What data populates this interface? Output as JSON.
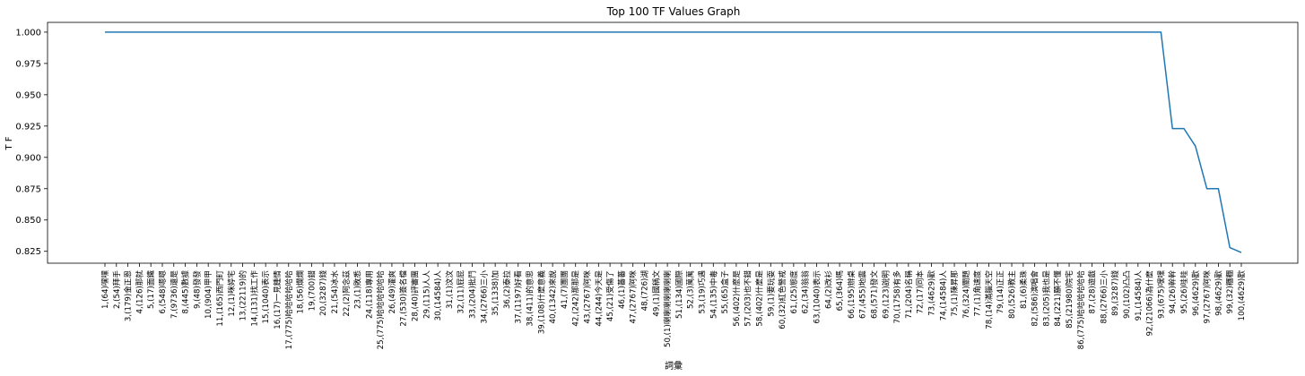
{
  "chart_data": {
    "type": "line",
    "title": "Top 100 TF Values Graph",
    "xlabel": "詞彙",
    "ylabel": "T F",
    "ylim": [
      0.8155,
      1.0078
    ],
    "yticks": [
      0.825,
      0.85,
      0.875,
      0.9,
      0.925,
      0.95,
      0.975,
      1.0
    ],
    "ytick_labels": [
      "0.825",
      "0.850",
      "0.875",
      "0.900",
      "0.925",
      "0.950",
      "0.975",
      "1.000"
    ],
    "grid": false,
    "line_color": "#1f77b4",
    "categories": [
      "1,(64)嘿嘿",
      "2,(54)拜手",
      "3,(179)金正恩",
      "4,(126)那就",
      "5,(17)面鐵",
      "6,(548)嗯嗯",
      "7,(9736)還是",
      "8,(445)數據",
      "9,(48)發發",
      "10,(904)甲甲",
      "11,(165)西門町",
      "12,(1)咪婷宅",
      "13,(22119)的",
      "14,(131)找工作",
      "15,(1040)表示",
      "16,(17)一見鍾情",
      "17,(775)哈哈哈哈哈哈",
      "18,(56)爛爛",
      "19,(700)錯",
      "20,(3287)錢",
      "21,(54)冰水",
      "22,(2)阿念茲",
      "23,(1)敗悉",
      "24,(118)專用",
      "25,(775)哈哈哈哈哈哈",
      "26,(49)灌爽",
      "27,(530)簽名檔",
      "28,(40)評審團",
      "29,(115)人人",
      "30,(14584)人",
      "31,(1)汶汶",
      "32,(11)屁屁",
      "33,(204)批鬥",
      "34,(2766)三小",
      "35,(1338)加",
      "36,(2)泰拉",
      "37,(1197)好看",
      "38,(411)的意思",
      "39,(108)什麼意義",
      "40,(1342)來說",
      "41,(7)團團",
      "42,(242)那那是",
      "43,(2767)阿咪",
      "44,(244)今天是",
      "45,(21)受傷了",
      "46,(1)蕃蕃",
      "47,(2767)阿咪",
      "48,(726)湖",
      "49,(1)國稱文",
      "50,(1)喇喇喇喇喇喇喇",
      "51,(134)國際",
      "52,(3)萬萬",
      "53,(19)巧遇",
      "54,(135)中毒",
      "55,(65)盒子",
      "56,(402)什麼是",
      "57,(203)也不錯",
      "58,(402)什麼是",
      "59,(1)要玩耍",
      "60,(32)紅色警戒",
      "61,(25)態度",
      "62,(34)翁翁",
      "63,(1040)表示",
      "64,(2)改衫",
      "65,(364)嗎",
      "66,(195)辦桌",
      "67,(455)地震",
      "68,(571)發文",
      "69,(123)說明",
      "70,(1758)有多",
      "71,(204)名稱",
      "72,(17)同本",
      "73,(4629)歡",
      "74,(14584)人",
      "75,(1)陳昇那",
      "76,(324)關題",
      "77,(1)角速度",
      "78,(14)滿腦天空",
      "79,(14)正正",
      "80,(526)教主",
      "81,(6)柔珠",
      "82,(586)演唱會",
      "83,(205)我也是",
      "84,(221)願不懂",
      "85,(21980)院宅",
      "86,(775)哈哈哈哈哈哈",
      "87,(28)遊戲",
      "88,(2766)三小",
      "89,(3287)錢",
      "90,(102)凸凸",
      "91,(14584)人",
      "92,(21066)為什麼",
      "93,(675)嘿嘿",
      "94,(26)幹幹",
      "95,(26)哇哇",
      "96,(4629)歡",
      "97,(2767)阿咪",
      "98,(4629)歡",
      "99,(32)糰糰",
      "100,(4629)歡"
    ],
    "values": [
      1,
      1,
      1,
      1,
      1,
      1,
      1,
      1,
      1,
      1,
      1,
      1,
      1,
      1,
      1,
      1,
      1,
      1,
      1,
      1,
      1,
      1,
      1,
      1,
      1,
      1,
      1,
      1,
      1,
      1,
      1,
      1,
      1,
      1,
      1,
      1,
      1,
      1,
      1,
      1,
      1,
      1,
      1,
      1,
      1,
      1,
      1,
      1,
      1,
      1,
      1,
      1,
      1,
      1,
      1,
      1,
      1,
      1,
      1,
      1,
      1,
      1,
      1,
      1,
      1,
      1,
      1,
      1,
      1,
      1,
      1,
      1,
      1,
      1,
      1,
      1,
      1,
      1,
      1,
      1,
      1,
      1,
      1,
      1,
      1,
      1,
      1,
      1,
      1,
      1,
      1,
      1,
      1,
      0.923,
      0.923,
      0.909,
      0.875,
      0.875,
      0.828,
      0.824
    ]
  }
}
